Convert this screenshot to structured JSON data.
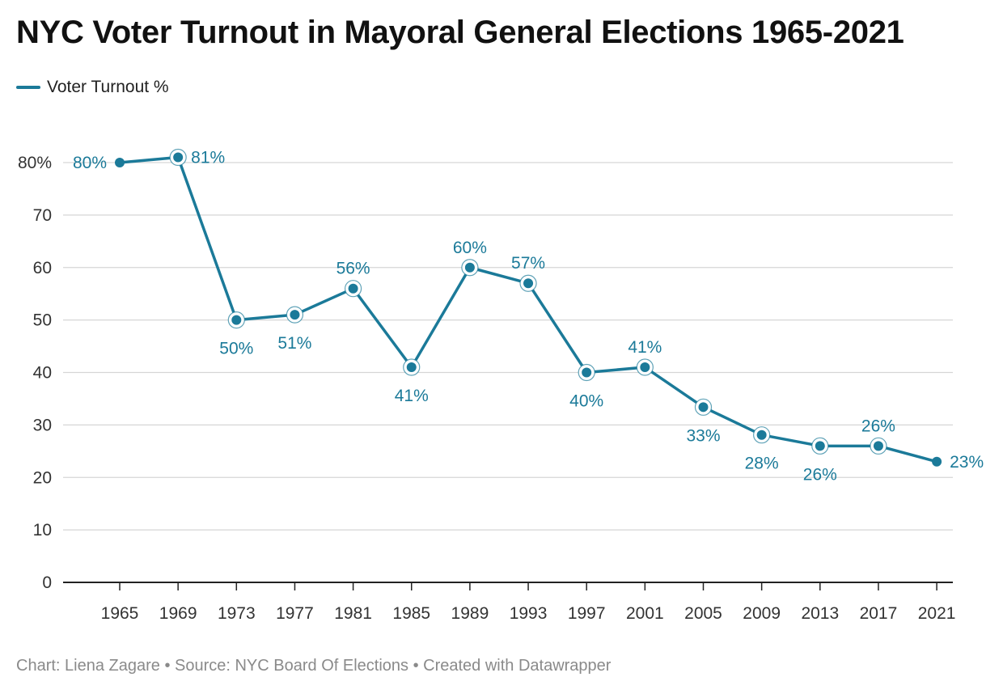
{
  "chart_data": {
    "type": "line",
    "title": "NYC Voter Turnout in Mayoral General Elections 1965-2021",
    "categories": [
      "1965",
      "1969",
      "1973",
      "1977",
      "1981",
      "1985",
      "1989",
      "1993",
      "1997",
      "2001",
      "2005",
      "2009",
      "2013",
      "2017",
      "2021"
    ],
    "series": [
      {
        "name": "Voter Turnout %",
        "values": [
          80,
          81,
          50,
          51,
          56,
          41,
          60,
          57,
          40,
          41,
          33.4,
          28.1,
          26,
          26,
          23
        ],
        "labels": [
          "80%",
          "81%",
          "50%",
          "51%",
          "56%",
          "41%",
          "60%",
          "57%",
          "40%",
          "41%",
          "33%",
          "28%",
          "26%",
          "26%",
          "23%"
        ],
        "color": "#1b7a99"
      }
    ],
    "ylim": [
      0,
      80
    ],
    "yticks": [
      0,
      10,
      20,
      30,
      40,
      50,
      60,
      70,
      80
    ],
    "ytick_labels": [
      "0",
      "10",
      "20",
      "30",
      "40",
      "50",
      "60",
      "70",
      "80%"
    ],
    "xlabel": "",
    "ylabel": "",
    "grid": true,
    "legend_placement": "top-left"
  },
  "footer": "Chart: Liena Zagare • Source: NYC Board Of Elections • Created with Datawrapper",
  "colors": {
    "series": "#1b7a99",
    "grid": "#d6d6d6",
    "axis": "#333333",
    "tick_text": "#333333"
  }
}
